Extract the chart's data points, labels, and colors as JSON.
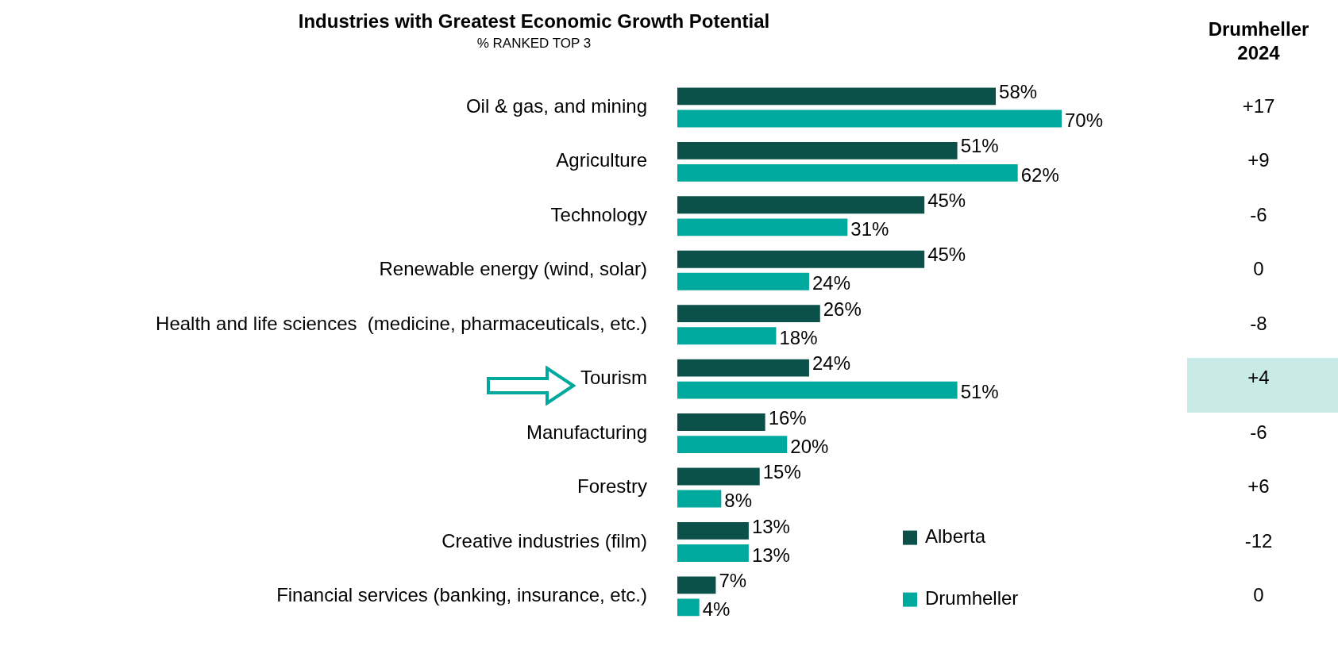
{
  "chart_data": {
    "type": "bar",
    "orientation": "horizontal",
    "title": "Industries with Greatest Economic Growth Potential",
    "subtitle": "% RANKED TOP 3",
    "categories": [
      "Oil & gas, and mining",
      "Agriculture",
      "Technology",
      "Renewable energy (wind, solar)",
      "Health and life sciences  (medicine, pharmaceuticals, etc.)",
      "Tourism",
      "Manufacturing",
      "Forestry",
      "Creative industries (film)",
      "Financial services (banking, insurance, etc.)"
    ],
    "series": [
      {
        "name": "Alberta",
        "color": "#0b5149",
        "values": [
          58,
          51,
          45,
          45,
          26,
          24,
          16,
          15,
          13,
          7
        ],
        "value_labels": [
          "58%",
          "51%",
          "45%",
          "45%",
          "26%",
          "24%",
          "16%",
          "15%",
          "13%",
          "7%"
        ]
      },
      {
        "name": "Drumheller",
        "color": "#00a99d",
        "values": [
          70,
          62,
          31,
          24,
          18,
          51,
          20,
          8,
          13,
          4
        ],
        "value_labels": [
          "70%",
          "62%",
          "31%",
          "24%",
          "18%",
          "51%",
          "20%",
          "8%",
          "13%",
          "4%"
        ]
      }
    ],
    "legend": "bottom right",
    "annotations": [
      "Drumheller 2024",
      "+17",
      "+9",
      "-6",
      "0",
      "-8",
      "+4",
      "-6",
      "+6",
      "-12",
      "0"
    ]
  }
}
